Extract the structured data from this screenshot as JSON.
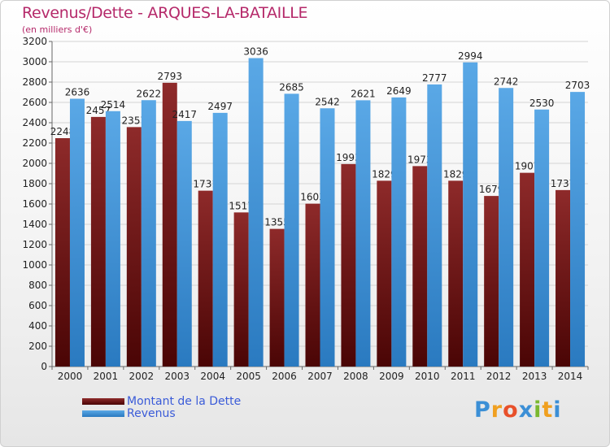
{
  "title": "Revenus/Dette - ARQUES-LA-BATAILLE",
  "subtitle": "(en milliers d'€)",
  "logo": {
    "letters": [
      "P",
      "r",
      "o",
      "x",
      "i",
      "t",
      "i"
    ],
    "colors": [
      "#3b8fd6",
      "#f0a020",
      "#e8502a",
      "#3b8fd6",
      "#7ab830",
      "#f0a020",
      "#3b8fd6"
    ]
  },
  "legend": [
    {
      "label": "Montant de la Dette",
      "color": "#7a1a1a"
    },
    {
      "label": "Revenus",
      "color": "#4a9ee0"
    }
  ],
  "chart_data": {
    "type": "bar",
    "categories": [
      "2000",
      "2001",
      "2002",
      "2003",
      "2004",
      "2005",
      "2006",
      "2007",
      "2008",
      "2009",
      "2010",
      "2011",
      "2012",
      "2013",
      "2014"
    ],
    "series": [
      {
        "name": "Montant de la Dette",
        "values": [
          2248,
          2457,
          2357,
          2793,
          1731,
          1517,
          1355,
          1603,
          1993,
          1829,
          1973,
          1829,
          1679,
          1907,
          1737
        ],
        "labels": [
          "2248",
          "2457",
          "2357",
          "2793",
          "1731",
          "1517",
          "1355",
          "1603",
          "1993",
          "1829",
          "1973",
          "1829",
          "1679",
          "1907",
          "1737"
        ],
        "color": "#7a1a1a"
      },
      {
        "name": "Revenus",
        "values": [
          2636,
          2514,
          2622,
          2417,
          2497,
          3036,
          2685,
          2542,
          2621,
          2649,
          2777,
          2994,
          2742,
          2530,
          2703
        ],
        "labels": [
          "2636",
          "2514",
          "2622",
          "2417",
          "2497",
          "3036",
          "2685",
          "2542",
          "2621",
          "2649",
          "2777",
          "2994",
          "2742",
          "2530",
          "2703"
        ],
        "color": "#4a9ee0"
      }
    ],
    "yticks": [
      0,
      200,
      400,
      600,
      800,
      1000,
      1200,
      1400,
      1600,
      1800,
      2000,
      2200,
      2400,
      2600,
      2800,
      3000,
      3200
    ],
    "ylim": [
      0,
      3200
    ],
    "grid": true,
    "legend_position": "bottom-left"
  }
}
